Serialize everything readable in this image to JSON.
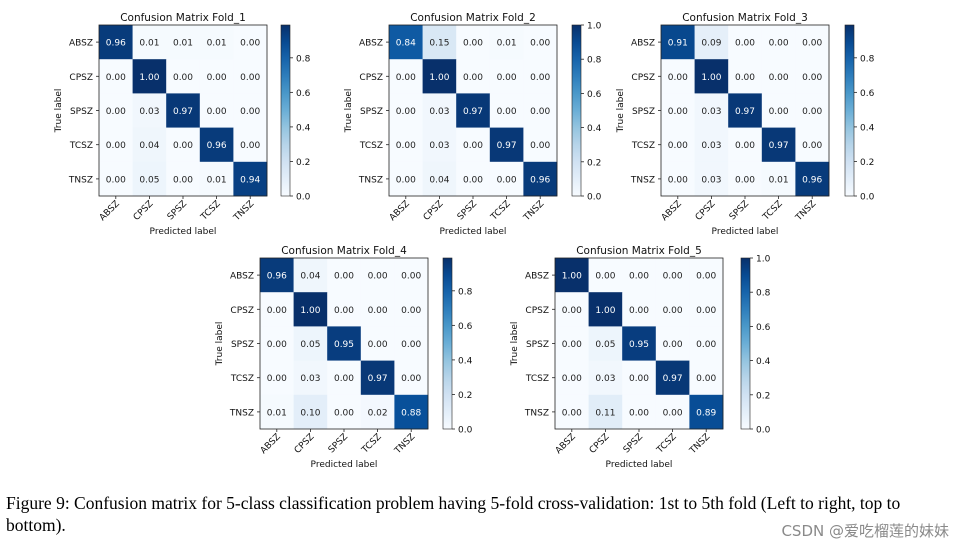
{
  "chart_data": [
    {
      "type": "heatmap",
      "title": "Confusion Matrix Fold_1",
      "xlabel": "Predicted label",
      "ylabel": "True label",
      "categories": [
        "ABSZ",
        "CPSZ",
        "SPSZ",
        "TCSZ",
        "TNSZ"
      ],
      "values": [
        [
          0.96,
          0.01,
          0.01,
          0.01,
          0.0
        ],
        [
          0.0,
          1.0,
          0.0,
          0.0,
          0.0
        ],
        [
          0.0,
          0.03,
          0.97,
          0.0,
          0.0
        ],
        [
          0.0,
          0.04,
          0.0,
          0.96,
          0.0
        ],
        [
          0.0,
          0.05,
          0.0,
          0.01,
          0.94
        ]
      ],
      "colorbar_ticks": [
        "0.0",
        "0.2",
        "0.4",
        "0.6",
        "0.8"
      ]
    },
    {
      "type": "heatmap",
      "title": "Confusion Matrix Fold_2",
      "xlabel": "Predicted label",
      "ylabel": "True label",
      "categories": [
        "ABSZ",
        "CPSZ",
        "SPSZ",
        "TCSZ",
        "TNSZ"
      ],
      "values": [
        [
          0.84,
          0.15,
          0.0,
          0.01,
          0.0
        ],
        [
          0.0,
          1.0,
          0.0,
          0.0,
          0.0
        ],
        [
          0.0,
          0.03,
          0.97,
          0.0,
          0.0
        ],
        [
          0.0,
          0.03,
          0.0,
          0.97,
          0.0
        ],
        [
          0.0,
          0.04,
          0.0,
          0.0,
          0.96
        ]
      ],
      "colorbar_ticks": [
        "0.0",
        "0.2",
        "0.4",
        "0.6",
        "0.8",
        "1.0"
      ]
    },
    {
      "type": "heatmap",
      "title": "Confusion Matrix Fold_3",
      "xlabel": "Predicted label",
      "ylabel": "True label",
      "categories": [
        "ABSZ",
        "CPSZ",
        "SPSZ",
        "TCSZ",
        "TNSZ"
      ],
      "values": [
        [
          0.91,
          0.09,
          0.0,
          0.0,
          0.0
        ],
        [
          0.0,
          1.0,
          0.0,
          0.0,
          0.0
        ],
        [
          0.0,
          0.03,
          0.97,
          0.0,
          0.0
        ],
        [
          0.0,
          0.03,
          0.0,
          0.97,
          0.0
        ],
        [
          0.0,
          0.03,
          0.0,
          0.01,
          0.96
        ]
      ],
      "colorbar_ticks": [
        "0.0",
        "0.2",
        "0.4",
        "0.6",
        "0.8"
      ]
    },
    {
      "type": "heatmap",
      "title": "Confusion Matrix Fold_4",
      "xlabel": "Predicted label",
      "ylabel": "True label",
      "categories": [
        "ABSZ",
        "CPSZ",
        "SPSZ",
        "TCSZ",
        "TNSZ"
      ],
      "values": [
        [
          0.96,
          0.04,
          0.0,
          0.0,
          0.0
        ],
        [
          0.0,
          1.0,
          0.0,
          0.0,
          0.0
        ],
        [
          0.0,
          0.05,
          0.95,
          0.0,
          0.0
        ],
        [
          0.0,
          0.03,
          0.0,
          0.97,
          0.0
        ],
        [
          0.01,
          0.1,
          0.0,
          0.02,
          0.88
        ]
      ],
      "colorbar_ticks": [
        "0.0",
        "0.2",
        "0.4",
        "0.6",
        "0.8"
      ]
    },
    {
      "type": "heatmap",
      "title": "Confusion Matrix Fold_5",
      "xlabel": "Predicted label",
      "ylabel": "True label",
      "categories": [
        "ABSZ",
        "CPSZ",
        "SPSZ",
        "TCSZ",
        "TNSZ"
      ],
      "values": [
        [
          1.0,
          0.0,
          0.0,
          0.0,
          0.0
        ],
        [
          0.0,
          1.0,
          0.0,
          0.0,
          0.0
        ],
        [
          0.0,
          0.05,
          0.95,
          0.0,
          0.0
        ],
        [
          0.0,
          0.03,
          0.0,
          0.97,
          0.0
        ],
        [
          0.0,
          0.11,
          0.0,
          0.0,
          0.89
        ]
      ],
      "colorbar_ticks": [
        "0.0",
        "0.2",
        "0.4",
        "0.6",
        "0.8",
        "1.0"
      ]
    }
  ],
  "caption": "Figure 9: Confusion matrix for 5-class classification problem having 5-fold cross-validation: 1st to 5th fold (Left to right, top to bottom).",
  "watermark": "CSDN @爱吃榴莲的妹妹",
  "colors": {
    "low": "#f7fbff",
    "high": "#08306b"
  }
}
